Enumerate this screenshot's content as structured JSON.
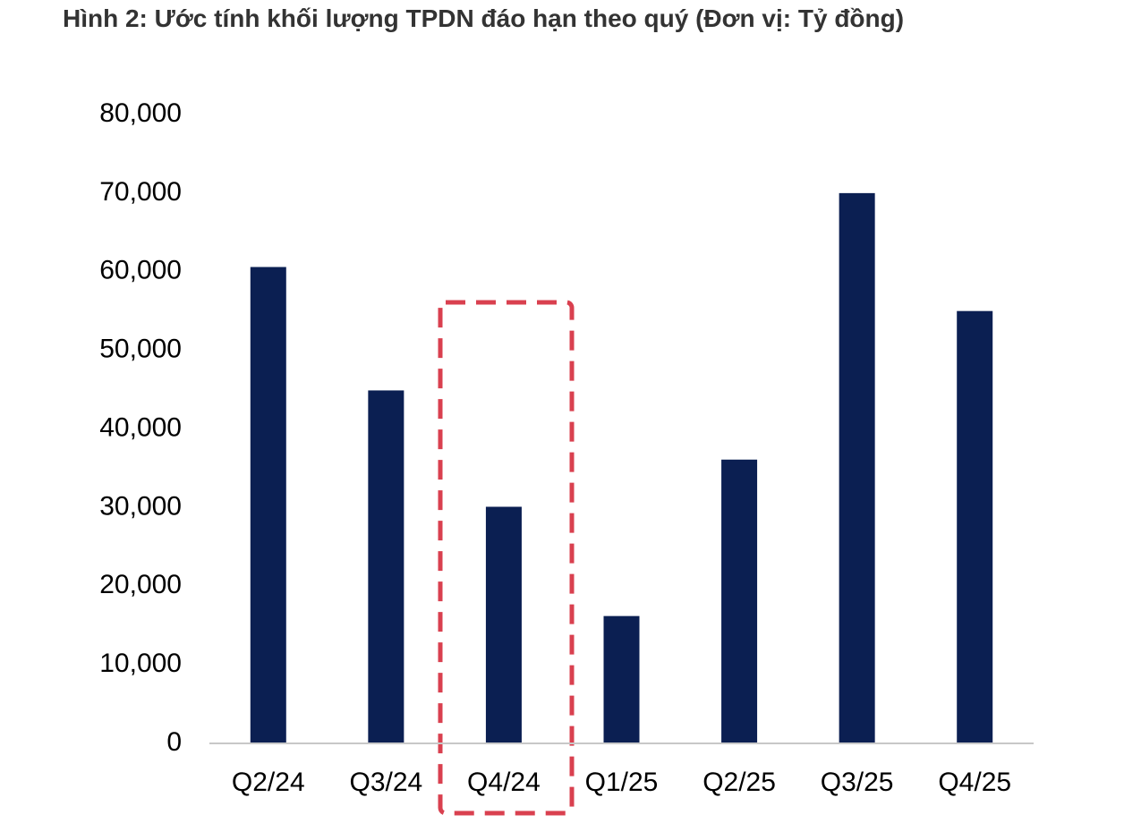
{
  "chart_data": {
    "type": "bar",
    "title": "Hình 2: Ước tính khối lượng TPDN đáo hạn theo quý (Đơn vị: Tỷ đồng)",
    "categories": [
      "Q2/24",
      "Q3/24",
      "Q4/24",
      "Q1/25",
      "Q2/25",
      "Q3/25",
      "Q4/25"
    ],
    "values": [
      60600,
      44900,
      30100,
      16200,
      36100,
      70000,
      55000
    ],
    "color": "#0b1f52",
    "ylim": [
      0,
      80000
    ],
    "yticks": [
      0,
      {
        "value": 10000,
        "label": "10,000"
      },
      {
        "value": 20000,
        "label": "20,000"
      },
      {
        "value": 30000,
        "label": "30,000"
      },
      {
        "value": 40000,
        "label": "40,000"
      },
      {
        "value": 50000,
        "label": "50,000"
      },
      {
        "value": 60000,
        "label": "60,000"
      },
      {
        "value": 70000,
        "label": "70,000"
      },
      {
        "value": 80000,
        "label": "80,000"
      }
    ],
    "grid": false
  }
}
